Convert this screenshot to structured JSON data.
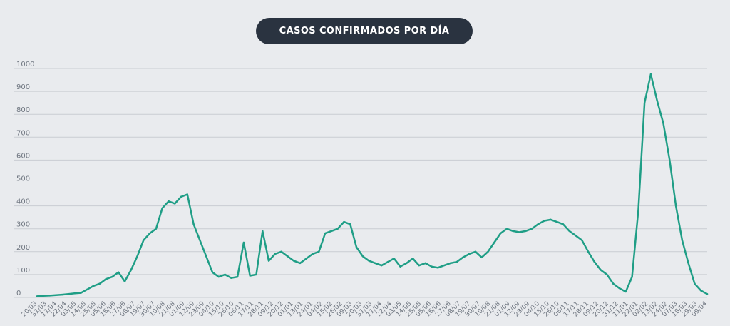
{
  "chart_data": {
    "type": "line",
    "title": "CASOS CONFIRMADOS POR DÍA",
    "xlabel": "",
    "ylabel": "",
    "ylim": [
      0,
      1000
    ],
    "yticks": [
      0,
      100,
      200,
      300,
      400,
      500,
      600,
      700,
      800,
      900,
      1000
    ],
    "grid": true,
    "line_color": "#1f9e86",
    "x_tick_labels": [
      "20/03",
      "31/03",
      "11/04",
      "22/04",
      "03/05",
      "14/05",
      "25/05",
      "05/06",
      "16/06",
      "27/06",
      "08/07",
      "19/07",
      "30/07",
      "10/08",
      "21/08",
      "01/09",
      "12/09",
      "23/09",
      "04/10",
      "15/10",
      "26/10",
      "06/11",
      "17/11",
      "28/11",
      "09/12",
      "20/12",
      "01/01",
      "13/01",
      "24/01",
      "04/02",
      "15/02",
      "26/02",
      "09/03",
      "20/03",
      "31/03",
      "11/04",
      "22/04",
      "03/05",
      "14/05",
      "25/05",
      "05/06",
      "16/06",
      "27/06",
      "08/07",
      "19/07",
      "30/07",
      "10/08",
      "21/08",
      "01/09",
      "12/09",
      "23/09",
      "04/10",
      "15/10",
      "26/10",
      "06/11",
      "17/11",
      "28/11",
      "09/12",
      "20/12",
      "31/12",
      "11/01",
      "22/01",
      "02/02",
      "13/02",
      "24/02",
      "07/03",
      "18/03",
      "29/03",
      "09/04"
    ],
    "series": [
      {
        "values": [
          5,
          7,
          8,
          10,
          12,
          15,
          18,
          20,
          35,
          50,
          60,
          80,
          90,
          110,
          70,
          120,
          180,
          250,
          280,
          300,
          390,
          420,
          410,
          440,
          450,
          320,
          250,
          180,
          110,
          90,
          100,
          85,
          90,
          240,
          95,
          100,
          290,
          160,
          190,
          200,
          180,
          160,
          150,
          170,
          190,
          200,
          280,
          290,
          300,
          330,
          320,
          220,
          180,
          160,
          150,
          140,
          155,
          170,
          135,
          150,
          170,
          140,
          150,
          135,
          130,
          140,
          150,
          155,
          175,
          190,
          200,
          175,
          200,
          240,
          280,
          300,
          290,
          285,
          290,
          300,
          320,
          335,
          340,
          330,
          320,
          290,
          270,
          250,
          200,
          155,
          120,
          100,
          60,
          40,
          25,
          90,
          380,
          850,
          975,
          860,
          760,
          600,
          400,
          250,
          150,
          60,
          30,
          15
        ]
      }
    ]
  }
}
